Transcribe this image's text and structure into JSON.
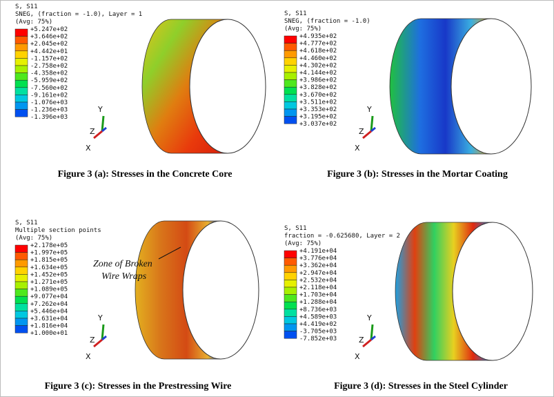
{
  "panels": [
    {
      "header": [
        "S, S11",
        "SNEG, (fraction = -1.0), Layer = 1",
        "(Avg: 75%)"
      ],
      "legend": [
        "+5.247e+02",
        "+3.646e+02",
        "+2.045e+02",
        "+4.442e+01",
        "-1.157e+02",
        "-2.758e+02",
        "-4.358e+02",
        "-5.959e+02",
        "-7.560e+02",
        "-9.161e+02",
        "-1.076e+03",
        "-1.236e+03",
        "-1.396e+03"
      ],
      "axes": [
        "Y",
        "Z",
        "X"
      ],
      "caption": "Figure 3 (a): Stresses in the Concrete Core"
    },
    {
      "header": [
        "S, S11",
        "SNEG, (fraction = -1.0)",
        "(Avg: 75%)"
      ],
      "legend": [
        "+4.935e+02",
        "+4.777e+02",
        "+4.618e+02",
        "+4.460e+02",
        "+4.302e+02",
        "+4.144e+02",
        "+3.986e+02",
        "+3.828e+02",
        "+3.670e+02",
        "+3.511e+02",
        "+3.353e+02",
        "+3.195e+02",
        "+3.037e+02"
      ],
      "axes": [
        "Y",
        "Z",
        "X"
      ],
      "caption": "Figure 3 (b): Stresses in the Mortar Coating"
    },
    {
      "header": [
        "S, S11",
        "Multiple section points",
        "(Avg: 75%)"
      ],
      "legend": [
        "+2.178e+05",
        "+1.997e+05",
        "+1.815e+05",
        "+1.634e+05",
        "+1.452e+05",
        "+1.271e+05",
        "+1.089e+05",
        "+9.077e+04",
        "+7.262e+04",
        "+5.446e+04",
        "+3.631e+04",
        "+1.816e+04",
        "+1.000e+01"
      ],
      "axes": [
        "Y",
        "Z",
        "X"
      ],
      "annotation": [
        "Zone of Broken",
        "Wire Wraps"
      ],
      "caption": "Figure 3 (c): Stresses in the Prestressing Wire"
    },
    {
      "header": [
        "S, S11",
        "fraction = -0.625680, Layer = 2",
        "(Avg: 75%)"
      ],
      "legend": [
        "+4.191e+04",
        "+3.776e+04",
        "+3.362e+04",
        "+2.947e+04",
        "+2.532e+04",
        "+2.118e+04",
        "+1.703e+04",
        "+1.288e+04",
        "+8.736e+03",
        "+4.589e+03",
        "+4.419e+02",
        "-3.705e+03",
        "-7.852e+03"
      ],
      "axes": [
        "Y",
        "Z",
        "X"
      ],
      "caption": "Figure 3 (d): Stresses in the Steel Cylinder"
    }
  ]
}
